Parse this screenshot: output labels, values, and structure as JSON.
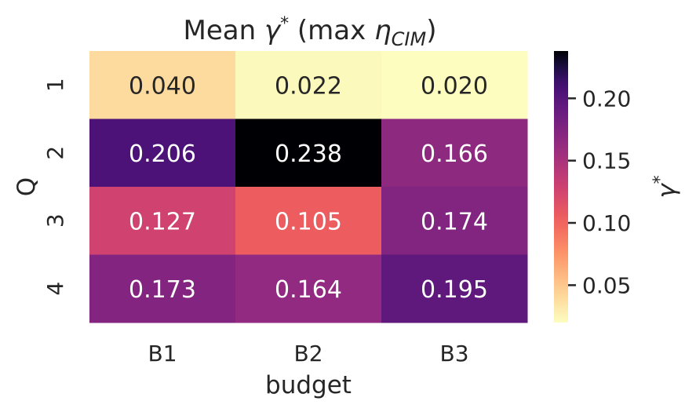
{
  "chart_data": {
    "type": "heatmap",
    "title": "Mean γ*  (max η_CIM)",
    "title_parts": {
      "prefix": "Mean ",
      "gamma": "γ",
      "star": "*",
      "middle": "  (max ",
      "eta": "η",
      "subscript": "CIM",
      "suffix": ")"
    },
    "xlabel": "budget",
    "ylabel": "Q",
    "x_categories": [
      "B1",
      "B2",
      "B3"
    ],
    "y_categories": [
      "1",
      "2",
      "3",
      "4"
    ],
    "values": [
      [
        0.04,
        0.022,
        0.02
      ],
      [
        0.206,
        0.238,
        0.166
      ],
      [
        0.127,
        0.105,
        0.174
      ],
      [
        0.173,
        0.164,
        0.195
      ]
    ],
    "value_labels": [
      [
        "0.040",
        "0.022",
        "0.020"
      ],
      [
        "0.206",
        "0.238",
        "0.166"
      ],
      [
        "0.127",
        "0.105",
        "0.174"
      ],
      [
        "0.173",
        "0.164",
        "0.195"
      ]
    ],
    "colormap": "magma_r",
    "vmin": 0.02,
    "vmax": 0.238,
    "colorbar": {
      "label": "γ*",
      "label_base": "γ",
      "label_sup": "*",
      "ticks": [
        0.05,
        0.1,
        0.15,
        0.2
      ],
      "tick_labels": [
        "0.05",
        "0.10",
        "0.15",
        "0.20"
      ]
    },
    "grid": false
  }
}
